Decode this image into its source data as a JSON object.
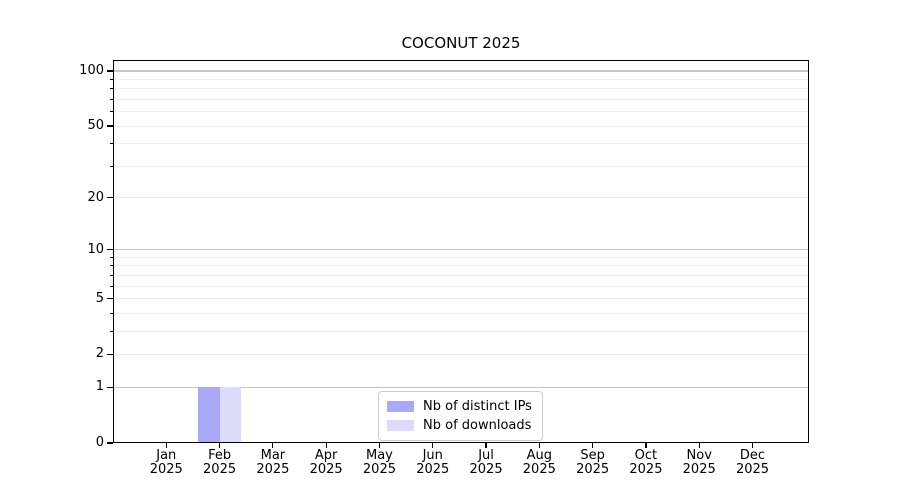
{
  "chart_data": {
    "type": "bar",
    "title": "COCONUT 2025",
    "categories": [
      "Jan 2025",
      "Feb 2025",
      "Mar 2025",
      "Apr 2025",
      "May 2025",
      "Jun 2025",
      "Jul 2025",
      "Aug 2025",
      "Sep 2025",
      "Oct 2025",
      "Nov 2025",
      "Dec 2025"
    ],
    "series": [
      {
        "name": "Nb of distinct IPs",
        "color": "#a9a9f7",
        "values": [
          0,
          1,
          0,
          0,
          0,
          0,
          0,
          0,
          0,
          0,
          0,
          0
        ]
      },
      {
        "name": "Nb of downloads",
        "color": "#dcdcfa",
        "values": [
          0,
          1,
          0,
          0,
          0,
          0,
          0,
          0,
          0,
          0,
          0,
          0
        ]
      }
    ],
    "xlabel": "",
    "ylabel": "",
    "y_scale": "log1p",
    "ylim": [
      0,
      115
    ],
    "y_tick_labels": [
      0,
      1,
      2,
      5,
      10,
      20,
      50,
      100
    ],
    "y_major_gridlines": [
      1,
      10,
      100
    ],
    "y_minor_gridlines": [
      2,
      3,
      4,
      5,
      6,
      7,
      8,
      9,
      20,
      30,
      40,
      50,
      60,
      70,
      80,
      90
    ],
    "grid": "horizontal",
    "legend_position": "lower center inside"
  },
  "colors": {
    "bar_distinct_ips": "#a9a9f7",
    "bar_downloads": "#dcdcfa",
    "grid_major": "#c6c6c6",
    "grid_minor": "#ededed",
    "axis": "#000000",
    "legend_border": "#cccccc"
  }
}
